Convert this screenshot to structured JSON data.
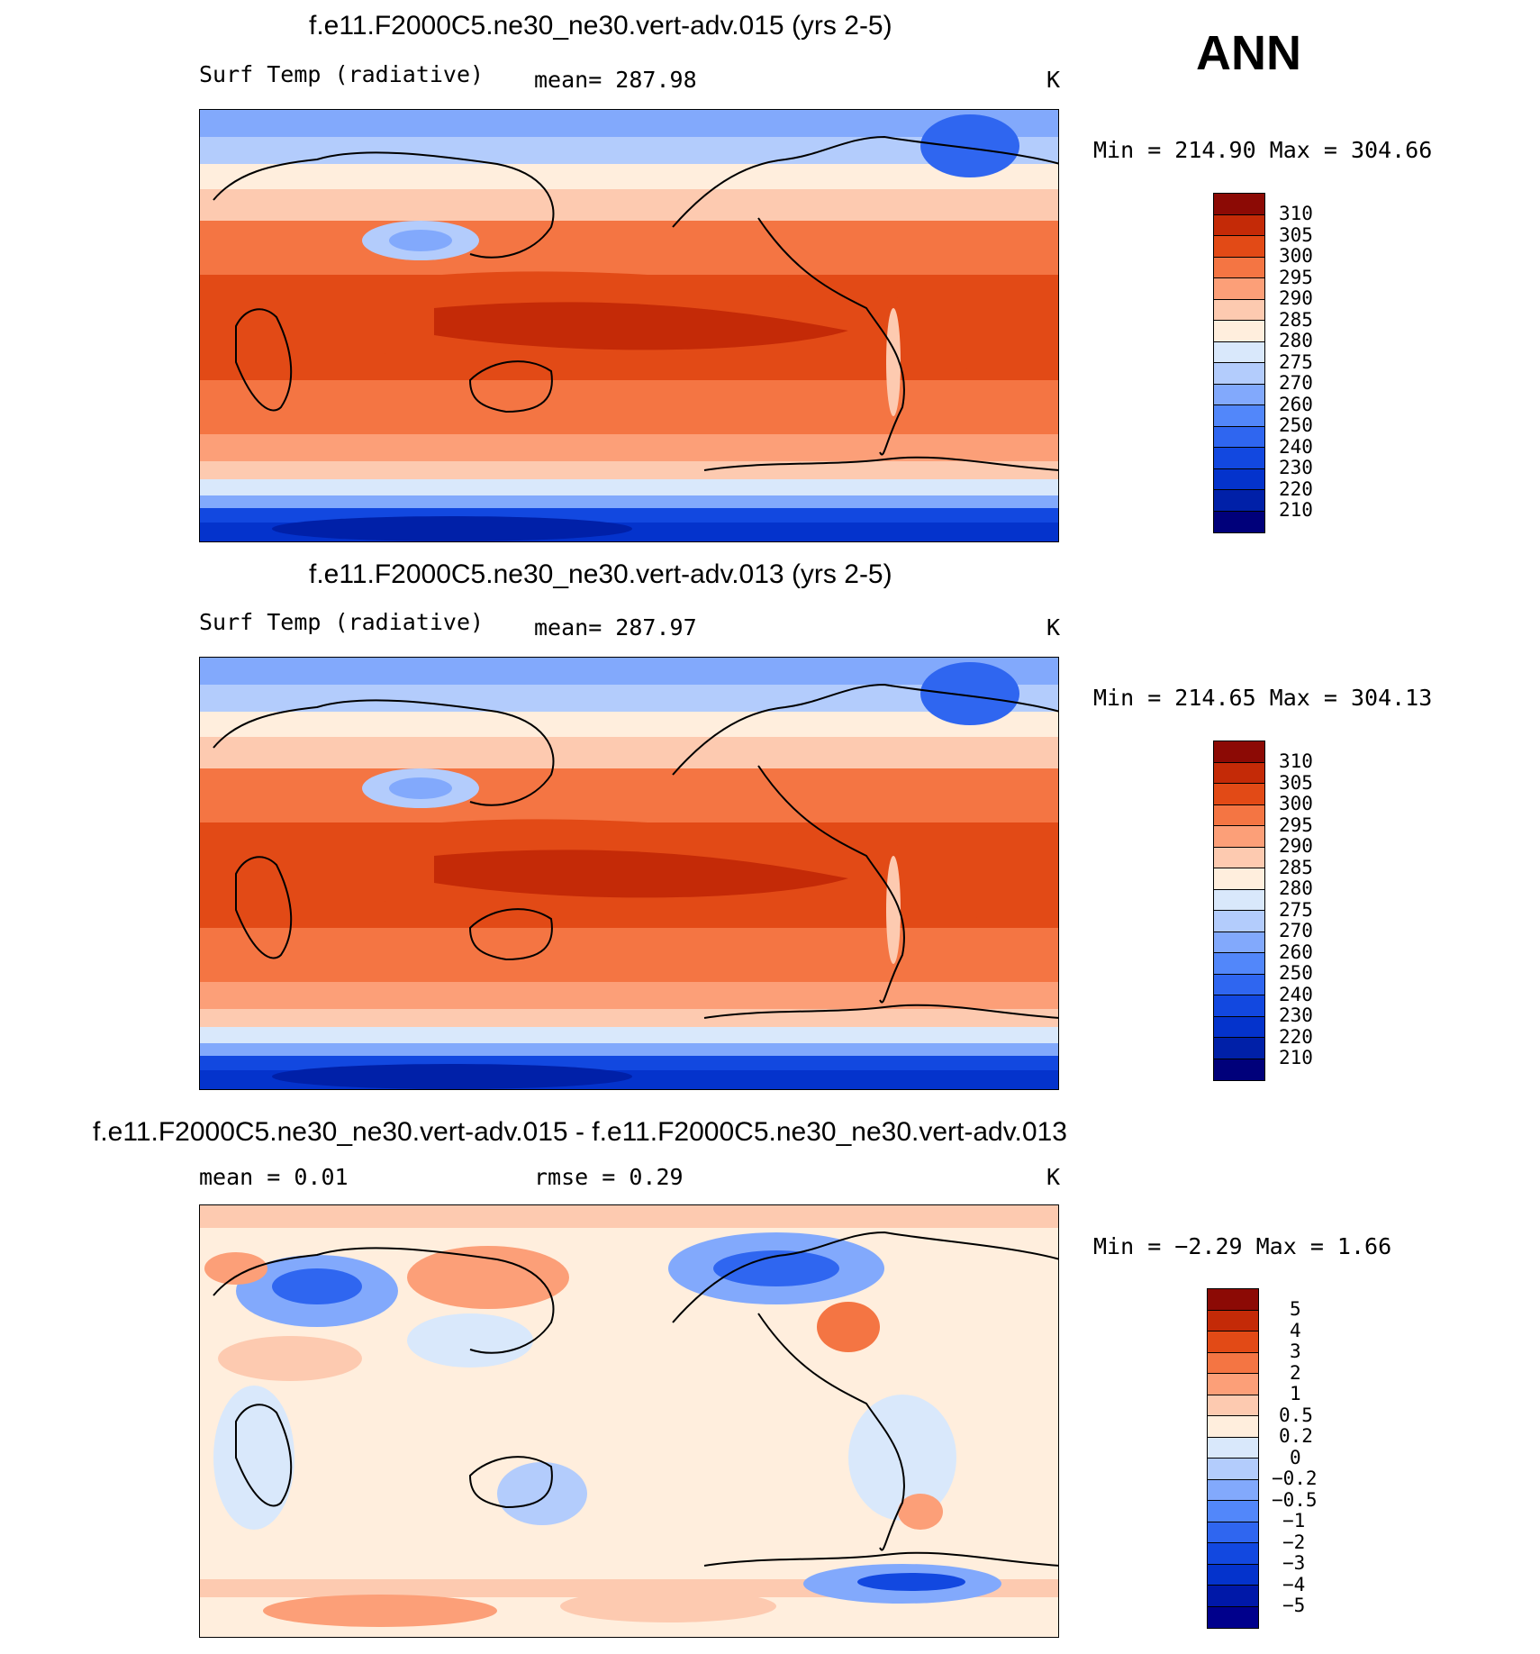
{
  "season": "ANN",
  "panels": [
    {
      "title": "f.e11.F2000C5.ne30_ne30.vert-adv.015 (yrs 2-5)",
      "left_label": "Surf Temp (radiative)",
      "mean_label": "mean= 287.98",
      "unit": "K",
      "minmax": "Min = 214.90 Max = 304.66",
      "legend_labels": [
        "310",
        "305",
        "300",
        "295",
        "290",
        "285",
        "280",
        "275",
        "270",
        "260",
        "250",
        "240",
        "230",
        "220",
        "210"
      ]
    },
    {
      "title": "f.e11.F2000C5.ne30_ne30.vert-adv.013 (yrs 2-5)",
      "left_label": "Surf Temp (radiative)",
      "mean_label": "mean= 287.97",
      "unit": "K",
      "minmax": "Min = 214.65 Max = 304.13",
      "legend_labels": [
        "310",
        "305",
        "300",
        "295",
        "290",
        "285",
        "280",
        "275",
        "270",
        "260",
        "250",
        "240",
        "230",
        "220",
        "210"
      ]
    },
    {
      "title": "f.e11.F2000C5.ne30_ne30.vert-adv.015 - f.e11.F2000C5.ne30_ne30.vert-adv.013",
      "left_label": "mean =    0.01",
      "mean_label": "rmse =    0.29",
      "unit": "K",
      "minmax": "Min =  −2.29 Max =    1.66",
      "legend_labels": [
        "5",
        "4",
        "3",
        "2",
        "1",
        "0.5",
        "0.2",
        "0",
        "−0.2",
        "−0.5",
        "−1",
        "−2",
        "−3",
        "−4",
        "−5"
      ]
    }
  ],
  "colors": {
    "abs_scale": [
      "#00007a",
      "#0020a8",
      "#0433cc",
      "#1248e0",
      "#2f66f0",
      "#5287fa",
      "#82a9fc",
      "#b3ccfc",
      "#d9e8fb",
      "#ffeedd",
      "#fdcab0",
      "#fc9f78",
      "#f47543",
      "#e24a16",
      "#c42a07",
      "#8c0a05"
    ],
    "diff_scale": [
      "#00008c",
      "#0018a8",
      "#0433cc",
      "#1248e0",
      "#2f66f0",
      "#5287fa",
      "#82a9fc",
      "#b3ccfc",
      "#d9e8fb",
      "#ffeedd",
      "#fdcab0",
      "#fc9f78",
      "#f47543",
      "#e24a16",
      "#c42a07",
      "#8c0a05"
    ]
  }
}
